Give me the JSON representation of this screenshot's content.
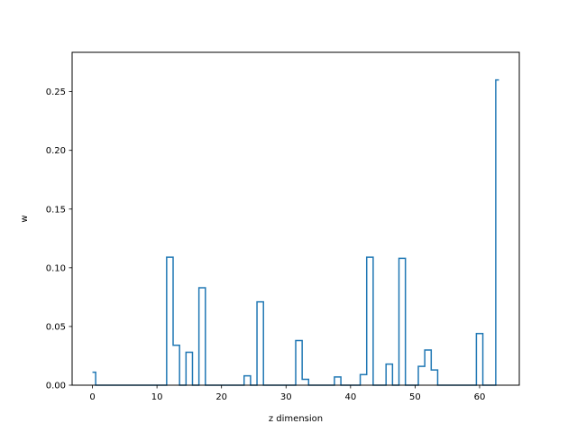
{
  "chart_data": {
    "type": "step",
    "title": "",
    "xlabel": "z dimension",
    "ylabel": "w",
    "xlim": [
      -3.15,
      66.15
    ],
    "ylim": [
      0,
      0.2835
    ],
    "xticks": [
      0,
      10,
      20,
      30,
      40,
      50,
      60
    ],
    "yticks": [
      0.0,
      0.05,
      0.1,
      0.15,
      0.2,
      0.25
    ],
    "ytick_labels": [
      "0.00",
      "0.05",
      "0.10",
      "0.15",
      "0.20",
      "0.25"
    ],
    "grid": false,
    "step_where": "mid",
    "line_color": "#1f77b4",
    "x": [
      0,
      1,
      2,
      3,
      4,
      5,
      6,
      7,
      8,
      9,
      10,
      11,
      12,
      13,
      14,
      15,
      16,
      17,
      18,
      19,
      20,
      21,
      22,
      23,
      24,
      25,
      26,
      27,
      28,
      29,
      30,
      31,
      32,
      33,
      34,
      35,
      36,
      37,
      38,
      39,
      40,
      41,
      42,
      43,
      44,
      45,
      46,
      47,
      48,
      49,
      50,
      51,
      52,
      53,
      54,
      55,
      56,
      57,
      58,
      59,
      60,
      61,
      62,
      63
    ],
    "values": [
      0.011,
      0,
      0,
      0,
      0,
      0,
      0,
      0,
      0,
      0,
      0,
      0,
      0.109,
      0.034,
      0,
      0.028,
      0,
      0.083,
      0,
      0,
      0,
      0,
      0,
      0,
      0.008,
      0,
      0.071,
      0,
      0,
      0,
      0,
      0,
      0.038,
      0.005,
      0,
      0,
      0,
      0,
      0.007,
      0,
      0,
      0,
      0.009,
      0.109,
      0,
      0,
      0.018,
      0,
      0.108,
      0,
      0,
      0.016,
      0.03,
      0.013,
      0,
      0,
      0,
      0,
      0,
      0,
      0.044,
      0,
      0,
      0.26
    ]
  }
}
